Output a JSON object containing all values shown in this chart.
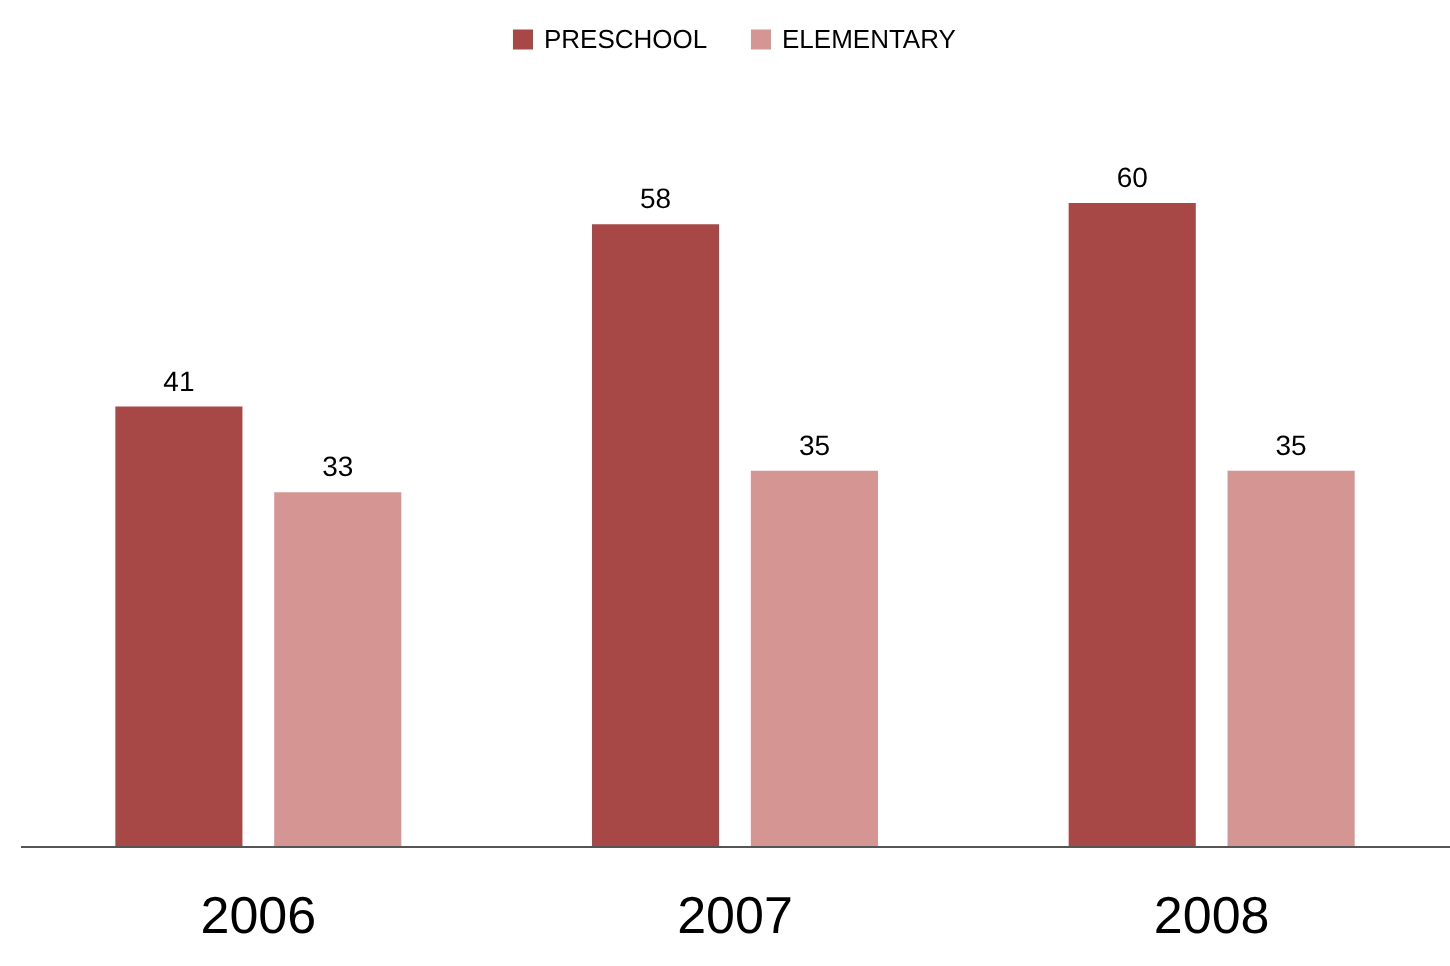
{
  "chart_data": {
    "type": "bar",
    "categories": [
      "2006",
      "2007",
      "2008"
    ],
    "series": [
      {
        "name": "PRESCHOOL",
        "color": "#a84846",
        "values": [
          41,
          58,
          60
        ]
      },
      {
        "name": "ELEMENTARY",
        "color": "#d49593",
        "values": [
          33,
          35,
          35
        ]
      }
    ],
    "data_labels": true,
    "legend": "top"
  }
}
